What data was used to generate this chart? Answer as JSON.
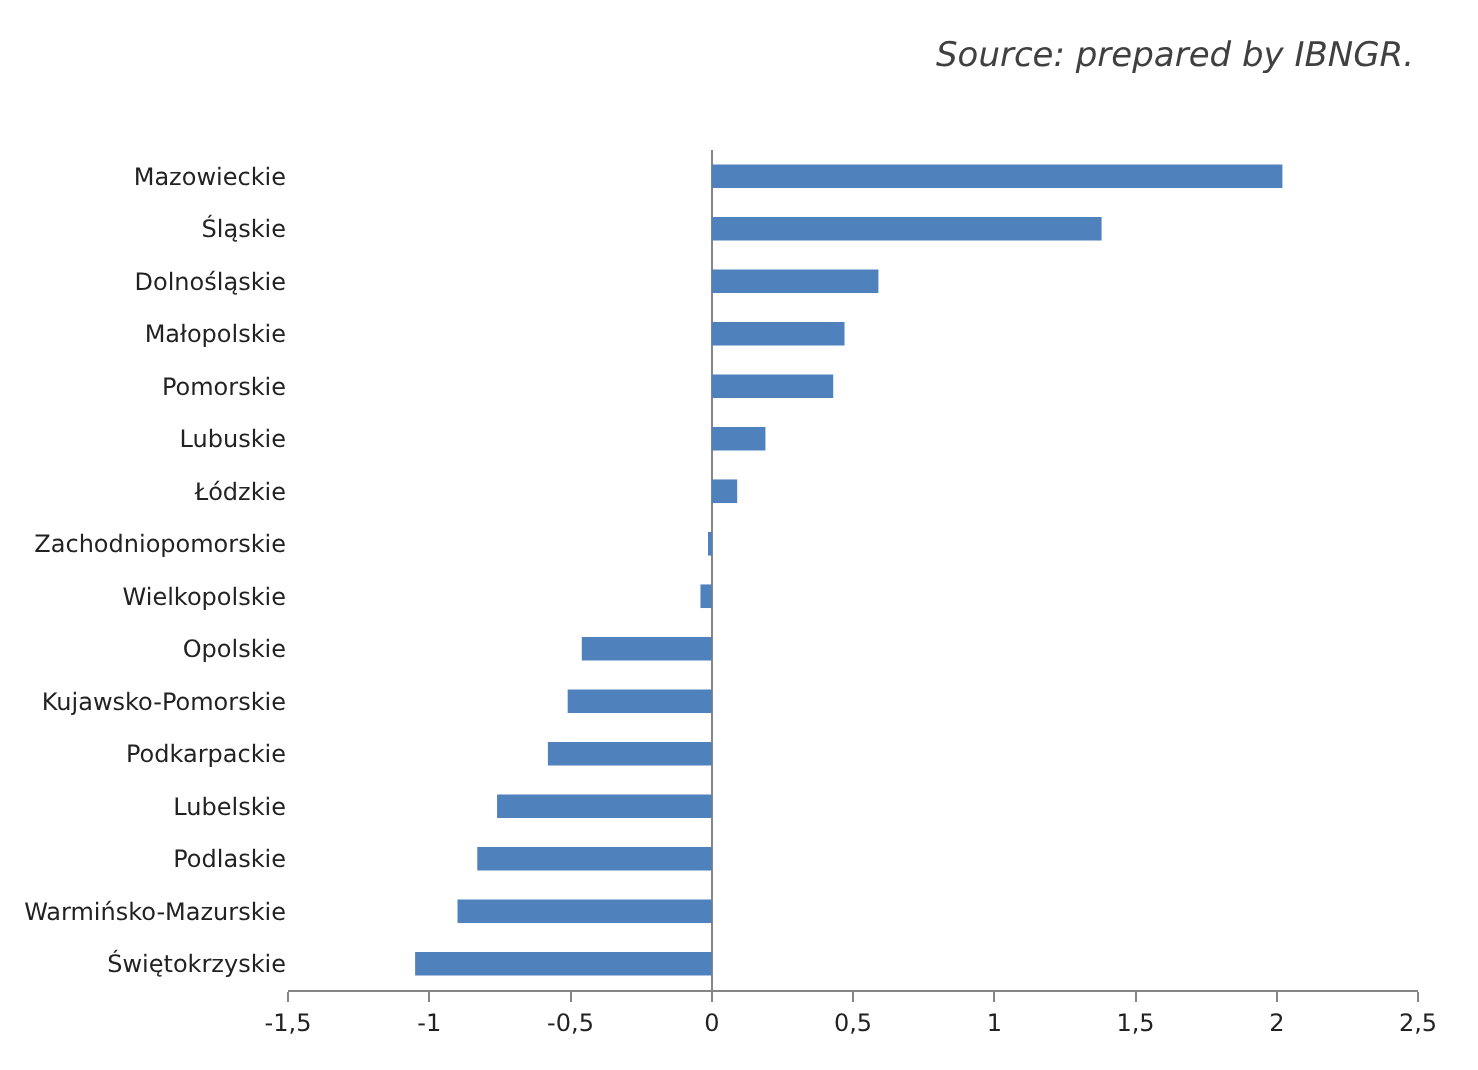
{
  "chart_data": {
    "type": "bar",
    "orientation": "horizontal",
    "categories": [
      "Mazowieckie",
      "Śląskie",
      "Dolnośląskie",
      "Małopolskie",
      "Pomorskie",
      "Lubuskie",
      "Łódzkie",
      "Zachodniopomorskie",
      "Wielkopolskie",
      "Opolskie",
      "Kujawsko-Pomorskie",
      "Podkarpackie",
      "Lubelskie",
      "Podlaskie",
      "Warmińsko-Mazurskie",
      "Świętokrzyskie"
    ],
    "values": [
      2.02,
      1.38,
      0.59,
      0.47,
      0.43,
      0.19,
      0.09,
      -0.01,
      -0.04,
      -0.46,
      -0.51,
      -0.58,
      -0.76,
      -0.83,
      -0.9,
      -1.05
    ],
    "color": "#4f81bd",
    "xlim": [
      -1.5,
      2.5
    ],
    "xticks": [
      {
        "value": -1.5,
        "label": "-1,5"
      },
      {
        "value": -1,
        "label": "-1"
      },
      {
        "value": -0.5,
        "label": "-0,5"
      },
      {
        "value": 0,
        "label": "0"
      },
      {
        "value": 0.5,
        "label": "0,5"
      },
      {
        "value": 1,
        "label": "1"
      },
      {
        "value": 1.5,
        "label": "1,5"
      },
      {
        "value": 2,
        "label": "2"
      },
      {
        "value": 2.5,
        "label": "2,5"
      }
    ],
    "annotations": [
      "Source: prepared by IBNGR."
    ]
  }
}
